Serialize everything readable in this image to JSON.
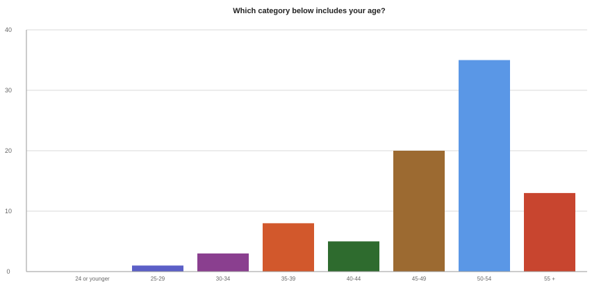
{
  "chart_data": {
    "type": "bar",
    "title": "Which category below includes your age?",
    "xlabel": "",
    "ylabel": "",
    "ylim": [
      0,
      40
    ],
    "yticks": [
      0,
      10,
      20,
      30,
      40
    ],
    "grid": true,
    "categories": [
      "24 or younger",
      "25-29",
      "30-34",
      "35-39",
      "40-44",
      "45-49",
      "50-54",
      "55 +"
    ],
    "values": [
      0,
      1,
      3,
      8,
      5,
      20,
      35,
      13
    ],
    "colors": [
      "#6a7fd0",
      "#5b5fc7",
      "#8a3f8f",
      "#d2582c",
      "#2e6b2e",
      "#9c6a31",
      "#5a97e6",
      "#c8452f"
    ]
  }
}
